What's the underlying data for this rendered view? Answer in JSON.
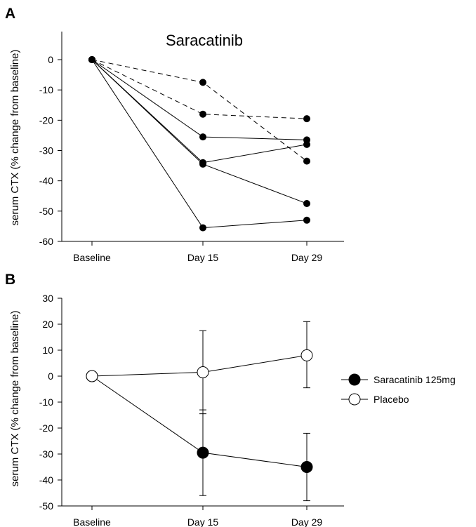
{
  "chart_data": [
    {
      "panel_label": "A",
      "type": "line",
      "title": "Saracatinib",
      "ylabel": "serum CTX (% change from baseline)",
      "categories": [
        "Baseline",
        "Day 15",
        "Day 29"
      ],
      "yticks": [
        0,
        -10,
        -20,
        -30,
        -40,
        -50,
        -60
      ],
      "ylim": [
        -60,
        0
      ],
      "grid": false,
      "series": [
        {
          "style": "dashed",
          "values": [
            0,
            -7.5,
            -33.5
          ]
        },
        {
          "style": "dashed",
          "values": [
            0,
            -18,
            -19.5
          ]
        },
        {
          "style": "solid",
          "values": [
            0,
            -25.5,
            -26.5
          ]
        },
        {
          "style": "solid",
          "values": [
            0,
            -34,
            -28
          ]
        },
        {
          "style": "solid",
          "values": [
            0,
            -34.5,
            -47.5
          ]
        },
        {
          "style": "solid",
          "values": [
            0,
            -55.5,
            -53
          ]
        }
      ]
    },
    {
      "panel_label": "B",
      "type": "line",
      "ylabel": "serum CTX (% change from baseline)",
      "categories": [
        "Baseline",
        "Day 15",
        "Day 29"
      ],
      "yticks": [
        30,
        20,
        10,
        0,
        -10,
        -20,
        -30,
        -40,
        -50
      ],
      "ylim": [
        -50,
        30
      ],
      "grid": false,
      "legend_position": "right",
      "series": [
        {
          "name": "Saracatinib 125mg",
          "marker": "filled",
          "values": [
            0,
            -29.5,
            -35
          ],
          "error_upper": [
            0,
            16.5,
            13
          ],
          "error_lower": [
            0,
            16.5,
            13
          ]
        },
        {
          "name": "Placebo",
          "marker": "open",
          "values": [
            0,
            1.5,
            8
          ],
          "error_upper": [
            0,
            16,
            13
          ],
          "error_lower": [
            0,
            16,
            12.5
          ]
        }
      ]
    }
  ]
}
